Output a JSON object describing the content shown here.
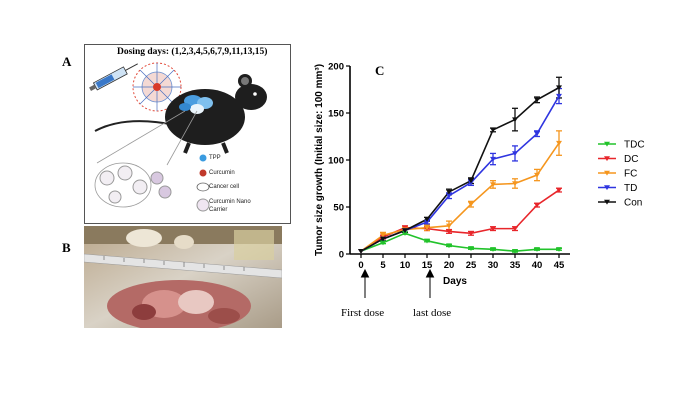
{
  "panels": {
    "a": "A",
    "b": "B",
    "c": "C"
  },
  "schematic": {
    "dosing_title": "Dosing days: (1,2,3,4,5,6,7,9,11,13,15)",
    "legend": [
      "TPP",
      "Curcumin",
      "Cancer cell",
      "Curcumin Nano Carrier"
    ]
  },
  "annotations": {
    "first_dose": "First dose",
    "last_dose": "last dose"
  },
  "colors": {
    "TDC": "#22c32b",
    "DC": "#e8262b",
    "FC": "#f5961e",
    "TD": "#2f35e0",
    "Con": "#111111"
  },
  "chart_data": {
    "type": "line",
    "ylabel": "Tumor size growth (Initial size: 100 mm³)",
    "xlabel": "Days",
    "x": [
      0,
      5,
      10,
      15,
      20,
      25,
      30,
      35,
      40,
      45
    ],
    "ylim": [
      0,
      200
    ],
    "yticks": [
      0,
      50,
      100,
      150,
      200
    ],
    "legend_position": "right",
    "series": [
      {
        "name": "TDC",
        "values": [
          3,
          12,
          22,
          14,
          9,
          6,
          5,
          3,
          5,
          5
        ]
      },
      {
        "name": "DC",
        "values": [
          3,
          18,
          28,
          27,
          24,
          22,
          27,
          27,
          52,
          68
        ]
      },
      {
        "name": "FC",
        "values": [
          3,
          20,
          26,
          28,
          30,
          53,
          74,
          75,
          84,
          118
        ]
      },
      {
        "name": "TD",
        "values": [
          3,
          16,
          25,
          34,
          62,
          76,
          101,
          107,
          128,
          168
        ]
      },
      {
        "name": "Con",
        "values": [
          3,
          16,
          25,
          37,
          66,
          78,
          132,
          143,
          164,
          177
        ]
      }
    ],
    "error_bars": {
      "TDC": [
        0,
        1,
        1,
        1,
        1,
        1,
        1,
        1,
        1,
        1
      ],
      "DC": [
        0,
        2,
        2,
        2,
        2,
        2,
        2,
        2,
        2,
        2
      ],
      "FC": [
        0,
        3,
        3,
        3,
        5,
        3,
        4,
        5,
        6,
        13
      ],
      "TD": [
        0,
        2,
        2,
        2,
        3,
        3,
        6,
        8,
        3,
        8
      ],
      "Con": [
        0,
        2,
        2,
        2,
        3,
        3,
        2,
        12,
        3,
        11
      ]
    }
  }
}
